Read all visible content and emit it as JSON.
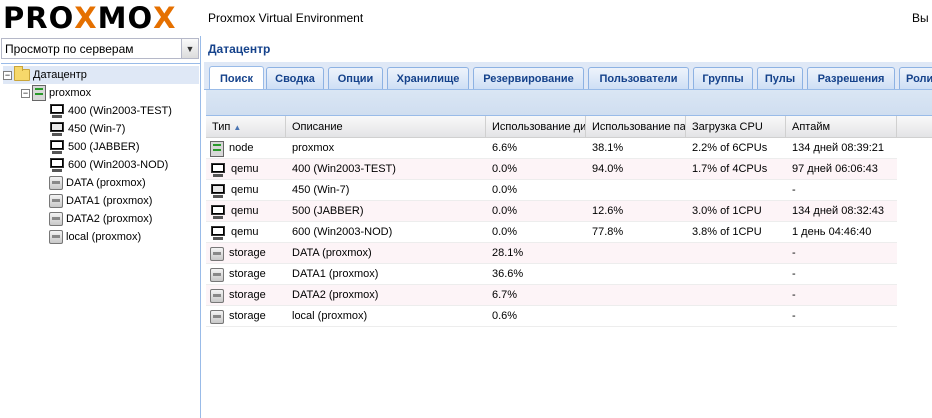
{
  "header": {
    "logo_prefix": "PRO",
    "logo_x1": "X",
    "logo_mid": "MO",
    "logo_x2": "X",
    "title": "Proxmox Virtual Environment",
    "user_text": "Вы"
  },
  "view_selector": {
    "value": "Просмотр по серверам"
  },
  "tree": {
    "root": {
      "label": "Датацентр",
      "icon": "folder-icon"
    },
    "node": {
      "label": "proxmox",
      "icon": "server-node-icon"
    },
    "children": [
      {
        "label": "400 (Win2003-TEST)",
        "icon": "vm-running-icon"
      },
      {
        "label": "450 (Win-7)",
        "icon": "vm-stopped-icon"
      },
      {
        "label": "500 (JABBER)",
        "icon": "vm-running-icon"
      },
      {
        "label": "600 (Win2003-NOD)",
        "icon": "vm-running-icon"
      },
      {
        "label": "DATA (proxmox)",
        "icon": "storage-icon"
      },
      {
        "label": "DATA1 (proxmox)",
        "icon": "storage-icon"
      },
      {
        "label": "DATA2 (proxmox)",
        "icon": "storage-icon"
      },
      {
        "label": "local (proxmox)",
        "icon": "storage-icon"
      }
    ]
  },
  "main": {
    "title": "Датацентр",
    "tabs": [
      "Поиск",
      "Сводка",
      "Опции",
      "Хранилище",
      "Резервирование",
      "Пользователи",
      "Группы",
      "Пулы",
      "Разрешения",
      "Роли"
    ],
    "active_tab": "Поиск"
  },
  "grid": {
    "columns": [
      "Тип",
      "Описание",
      "Использование ди",
      "Использование па",
      "Загрузка CPU",
      "Аптайм"
    ],
    "sort": {
      "column": "Тип",
      "direction": "asc"
    },
    "rows": [
      {
        "type": "node",
        "icon": "server-node-icon",
        "desc": "proxmox",
        "disk": "6.6%",
        "mem": "38.1%",
        "cpu": "2.2% of 6CPUs",
        "uptime": "134 дней 08:39:21"
      },
      {
        "type": "qemu",
        "icon": "vm-running-icon",
        "desc": "400 (Win2003-TEST)",
        "disk": "0.0%",
        "mem": "94.0%",
        "cpu": "1.7% of 4CPUs",
        "uptime": "97 дней 06:06:43"
      },
      {
        "type": "qemu",
        "icon": "vm-stopped-icon",
        "desc": "450 (Win-7)",
        "disk": "0.0%",
        "mem": "",
        "cpu": "",
        "uptime": "-"
      },
      {
        "type": "qemu",
        "icon": "vm-running-icon",
        "desc": "500 (JABBER)",
        "disk": "0.0%",
        "mem": "12.6%",
        "cpu": "3.0% of 1CPU",
        "uptime": "134 дней 08:32:43"
      },
      {
        "type": "qemu",
        "icon": "vm-running-icon",
        "desc": "600 (Win2003-NOD)",
        "disk": "0.0%",
        "mem": "77.8%",
        "cpu": "3.8% of 1CPU",
        "uptime": "1 день 04:46:40"
      },
      {
        "type": "storage",
        "icon": "storage-icon",
        "desc": "DATA (proxmox)",
        "disk": "28.1%",
        "mem": "",
        "cpu": "",
        "uptime": "-"
      },
      {
        "type": "storage",
        "icon": "storage-icon",
        "desc": "DATA1 (proxmox)",
        "disk": "36.6%",
        "mem": "",
        "cpu": "",
        "uptime": "-"
      },
      {
        "type": "storage",
        "icon": "storage-icon",
        "desc": "DATA2 (proxmox)",
        "disk": "6.7%",
        "mem": "",
        "cpu": "",
        "uptime": "-"
      },
      {
        "type": "storage",
        "icon": "storage-icon",
        "desc": "local (proxmox)",
        "disk": "0.6%",
        "mem": "",
        "cpu": "",
        "uptime": "-"
      }
    ]
  },
  "colors": {
    "accent": "#15428b",
    "logo_x": "#e57000",
    "selection": "#dfe8f6",
    "border": "#99bbe8"
  }
}
